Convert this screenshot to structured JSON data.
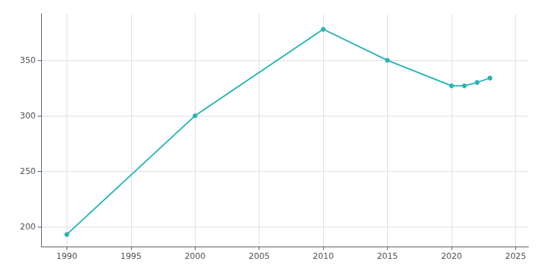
{
  "chart_data": {
    "type": "line",
    "x": [
      1990,
      2000,
      2010,
      2015,
      2020,
      2021,
      2022,
      2023
    ],
    "values": [
      193,
      300,
      378,
      350,
      327,
      327,
      330,
      334
    ],
    "color": "#2ab5b5",
    "marker": "circle",
    "xlim": [
      1988,
      2026
    ],
    "xticks": [
      1990,
      1995,
      2000,
      2005,
      2010,
      2015,
      2020,
      2025
    ],
    "ylim": [
      182,
      392
    ],
    "yticks": [
      200,
      250,
      300,
      350
    ],
    "grid": true
  }
}
